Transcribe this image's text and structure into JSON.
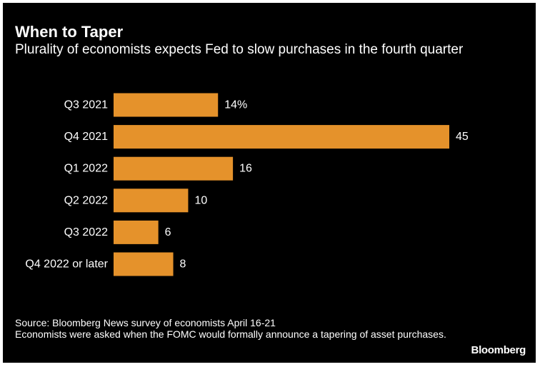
{
  "title": "When to Taper",
  "subtitle": "Plurality of economists expects Fed to slow purchases in the fourth quarter",
  "source": "Source: Bloomberg News survey of economists April 16-21",
  "note": "Economists were asked when the FOMC would formally announce a tapering of asset purchases.",
  "brand": "Bloomberg",
  "colors": {
    "background": "#000000",
    "bar": "#e5922b",
    "text": "#ffffff"
  },
  "chart_data": {
    "type": "bar",
    "orientation": "horizontal",
    "title": "When to Taper",
    "subtitle": "Plurality of economists expects Fed to slow purchases in the fourth quarter",
    "categories": [
      "Q3 2021",
      "Q4 2021",
      "Q1 2022",
      "Q2 2022",
      "Q3 2022",
      "Q4 2022 or later"
    ],
    "values": [
      14,
      45,
      16,
      10,
      6,
      8
    ],
    "value_labels": [
      "14%",
      "45",
      "16",
      "10",
      "6",
      "8"
    ],
    "unit": "%",
    "xlim": [
      0,
      45
    ],
    "grid": false,
    "legend": "none"
  }
}
